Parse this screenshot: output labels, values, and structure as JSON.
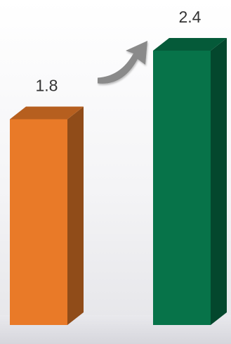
{
  "chart_data": {
    "type": "bar",
    "categories": [
      "",
      ""
    ],
    "values": [
      1.8,
      2.4
    ],
    "value_labels": [
      "1.8",
      "2.4"
    ],
    "colors": [
      "#E97A28",
      "#077349"
    ],
    "title": "",
    "xlabel": "",
    "ylabel": "",
    "ylim": [
      0,
      2.4
    ],
    "grid": false,
    "legend": "none",
    "annotations": [
      {
        "type": "curved-arrow",
        "from_bar": 0,
        "to_bar": 1,
        "color": "#8a8a8a"
      }
    ]
  }
}
